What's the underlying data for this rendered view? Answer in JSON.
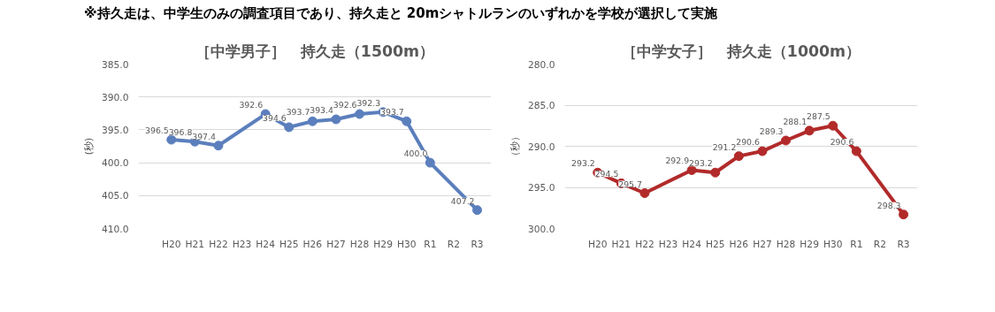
{
  "chart_data": [
    {
      "type": "line",
      "title": "［中学男子］　持久走（1500m）",
      "ylabel": "(秒)",
      "annotations": [
        "※持久走は、中学生のみの調査項目であり、持久走と 20mシャトルランのいずれかを学校が選択して実施"
      ],
      "categories": [
        "H20",
        "H21",
        "H22",
        "H23",
        "H24",
        "H25",
        "H26",
        "H27",
        "H28",
        "H29",
        "H30",
        "R1",
        "R2",
        "R3"
      ],
      "series": [
        {
          "color": "#5b7fbd",
          "values": [
            396.5,
            396.8,
            397.4,
            null,
            392.6,
            394.6,
            393.7,
            393.4,
            392.6,
            392.3,
            393.7,
            400.0,
            null,
            407.2
          ],
          "value_labels": [
            "396.5",
            "396.8",
            "397.4",
            null,
            "392.6",
            "394.6",
            "393.7",
            "393.4",
            "392.6",
            "392.3",
            "393.7",
            "400.0",
            null,
            "407.2"
          ]
        }
      ],
      "ylim": [
        410,
        385
      ],
      "yticks": [
        {
          "value": 385,
          "label": "385.0"
        },
        {
          "value": 390,
          "label": "390.0"
        },
        {
          "value": 395,
          "label": "395.0"
        },
        {
          "value": 400,
          "label": "400.0"
        },
        {
          "value": 405,
          "label": "405.0"
        },
        {
          "value": 410,
          "label": "410.0"
        }
      ],
      "grid": "y",
      "marker": "circle",
      "line_style": "solid"
    },
    {
      "type": "line",
      "title": "［中学女子］　持久走（1000m）",
      "ylabel": "（秒）",
      "categories": [
        "H20",
        "H21",
        "H22",
        "H23",
        "H24",
        "H25",
        "H26",
        "H27",
        "H28",
        "H29",
        "H30",
        "R1",
        "R2",
        "R3"
      ],
      "series": [
        {
          "color": "#b22a2a",
          "values": [
            293.2,
            294.5,
            295.7,
            null,
            292.9,
            293.2,
            291.2,
            290.6,
            289.3,
            288.1,
            287.5,
            290.6,
            null,
            298.3
          ],
          "value_labels": [
            "293.2",
            "294.5",
            "295.7",
            null,
            "292.9",
            "293.2",
            "291.2",
            "290.6",
            "289.3",
            "288.1",
            "287.5",
            "290.6",
            null,
            "298.3"
          ]
        }
      ],
      "ylim": [
        300,
        280
      ],
      "yticks": [
        {
          "value": 280,
          "label": "280.0"
        },
        {
          "value": 285,
          "label": "285.0"
        },
        {
          "value": 290,
          "label": "290.0"
        },
        {
          "value": 295,
          "label": "295.0"
        },
        {
          "value": 300,
          "label": "300.0"
        }
      ],
      "grid": "y",
      "marker": "circle",
      "line_style": "solid"
    }
  ]
}
